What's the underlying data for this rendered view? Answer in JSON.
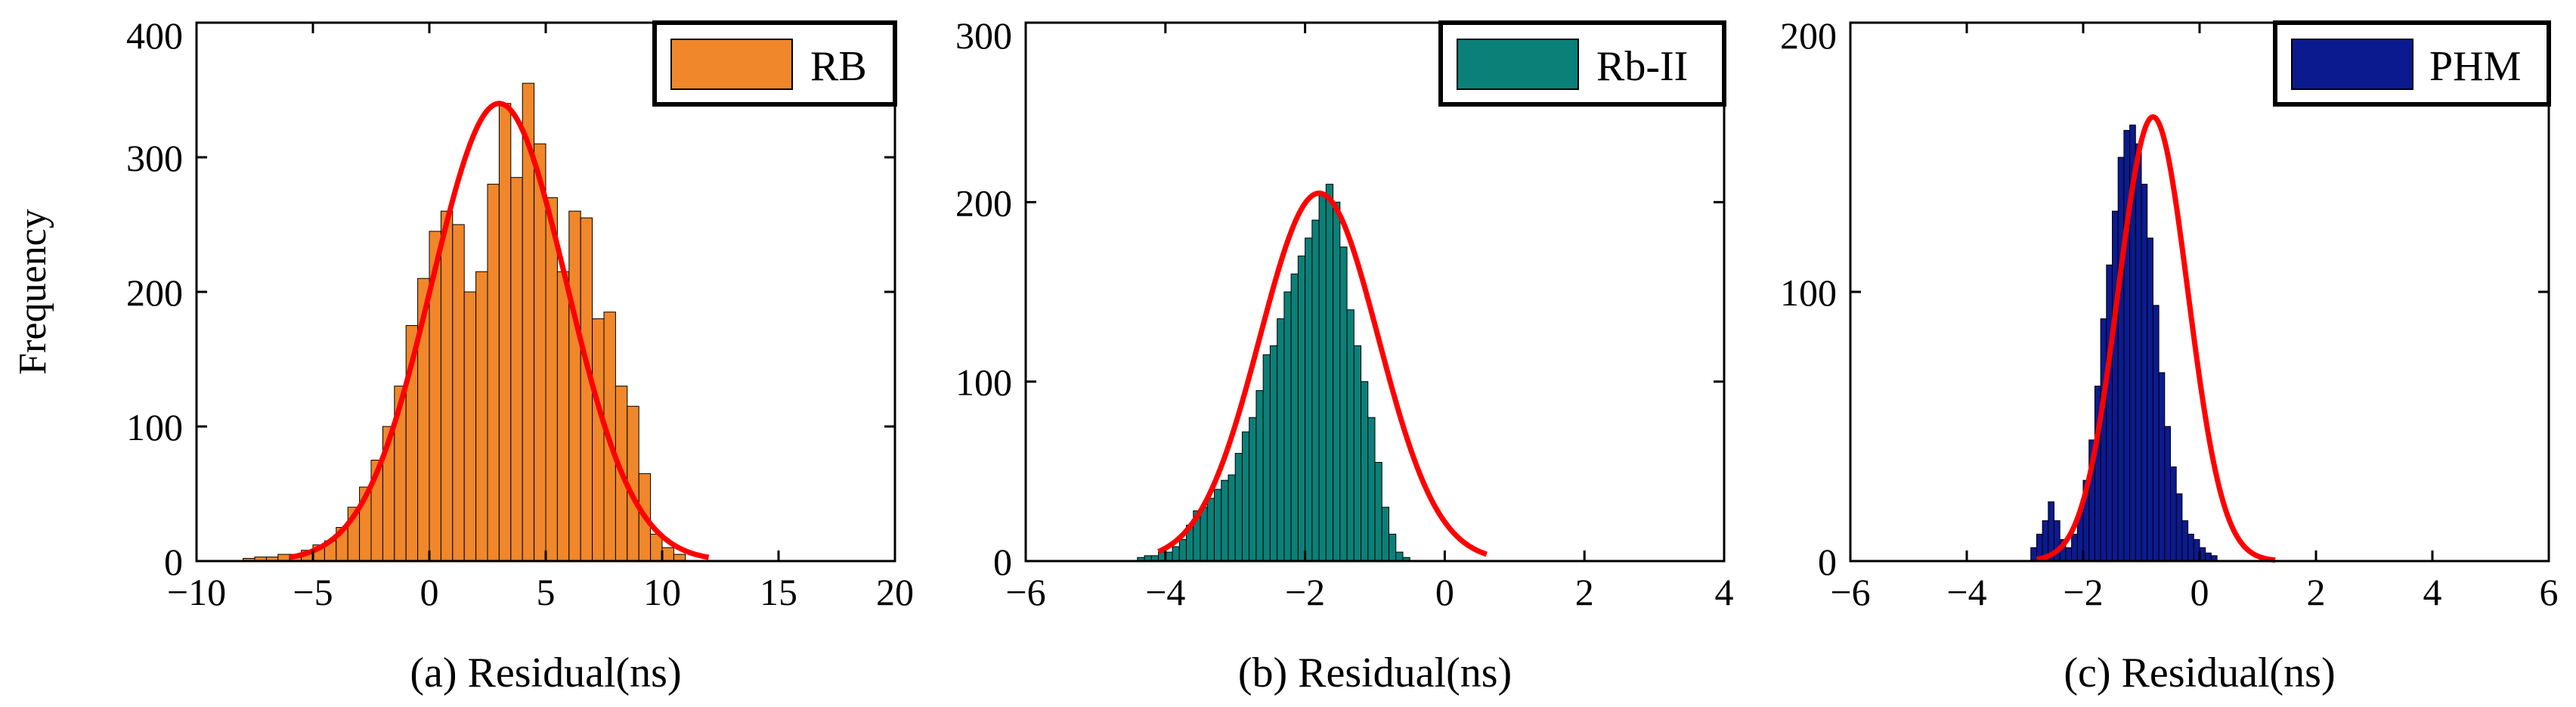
{
  "chart_data": [
    {
      "type": "bar",
      "panel": "a",
      "xlabel": "(a) Residual(ns)",
      "ylabel": "Frequency",
      "xlim": [
        -10,
        20
      ],
      "ylim": [
        0,
        400
      ],
      "xticks": [
        -10,
        -5,
        0,
        5,
        10,
        15,
        20
      ],
      "yticks": [
        0,
        100,
        200,
        300,
        400
      ],
      "xtick_labels": [
        "−10",
        "−5",
        "0",
        "5",
        "10",
        "15",
        "20"
      ],
      "ytick_labels": [
        "0",
        "100",
        "200",
        "300",
        "400"
      ],
      "legend": "RB",
      "legend_position": "top-right",
      "bar_color": "#f0872b",
      "bin_width": 0.5,
      "bin_start": -8.0,
      "values": [
        2,
        3,
        3,
        5,
        5,
        8,
        12,
        15,
        25,
        40,
        55,
        75,
        100,
        130,
        175,
        210,
        245,
        260,
        250,
        200,
        215,
        280,
        340,
        285,
        355,
        310,
        270,
        215,
        260,
        255,
        180,
        185,
        130,
        115,
        65,
        20,
        10,
        5
      ],
      "fit": {
        "mu": 3.0,
        "sigma": 2.9,
        "peak": 340,
        "color": "#ff0000",
        "range": [
          -6.0,
          12.0
        ]
      }
    },
    {
      "type": "bar",
      "panel": "b",
      "xlabel": "(b) Residual(ns)",
      "ylabel": "",
      "xlim": [
        -6,
        4
      ],
      "ylim": [
        0,
        300
      ],
      "xticks": [
        -6,
        -4,
        -2,
        0,
        2,
        4
      ],
      "yticks": [
        0,
        100,
        200,
        300
      ],
      "xtick_labels": [
        "−6",
        "−4",
        "−2",
        "0",
        "2",
        "4"
      ],
      "ytick_labels": [
        "0",
        "100",
        "200",
        "300"
      ],
      "legend": "Rb-II",
      "legend_position": "top-right",
      "bar_color": "#0a8078",
      "bin_width": 0.1,
      "bin_start": -4.4,
      "values": [
        2,
        3,
        3,
        5,
        5,
        8,
        12,
        20,
        28,
        30,
        35,
        40,
        45,
        48,
        60,
        72,
        80,
        95,
        115,
        120,
        135,
        150,
        160,
        170,
        180,
        190,
        205,
        210,
        200,
        175,
        140,
        120,
        100,
        80,
        55,
        30,
        15,
        5,
        2
      ],
      "fit": {
        "mu": -1.8,
        "sigma": 0.85,
        "peak": 205,
        "color": "#ff0000",
        "range": [
          -4.1,
          0.6
        ]
      }
    },
    {
      "type": "bar",
      "panel": "c",
      "xlabel": "(c) Residual(ns)",
      "ylabel": "",
      "xlim": [
        -6,
        6
      ],
      "ylim": [
        0,
        200
      ],
      "xticks": [
        -6,
        -4,
        -2,
        0,
        2,
        4,
        6
      ],
      "yticks": [
        0,
        100,
        200
      ],
      "xtick_labels": [
        "−6",
        "−4",
        "−2",
        "0",
        "2",
        "4",
        "6"
      ],
      "ytick_labels": [
        "0",
        "100",
        "200"
      ],
      "legend": "PHM",
      "legend_position": "top-right",
      "bar_color": "#0b1a8f",
      "bin_width": 0.1,
      "bin_start": -2.9,
      "values": [
        5,
        10,
        15,
        22,
        15,
        8,
        5,
        10,
        18,
        30,
        45,
        65,
        90,
        110,
        130,
        150,
        160,
        162,
        155,
        140,
        120,
        95,
        70,
        50,
        35,
        25,
        15,
        10,
        8,
        5,
        3,
        2
      ],
      "fit": {
        "mu": -0.8,
        "sigma": 0.6,
        "peak": 165,
        "color": "#ff0000",
        "range": [
          -2.8,
          1.3
        ]
      }
    }
  ]
}
